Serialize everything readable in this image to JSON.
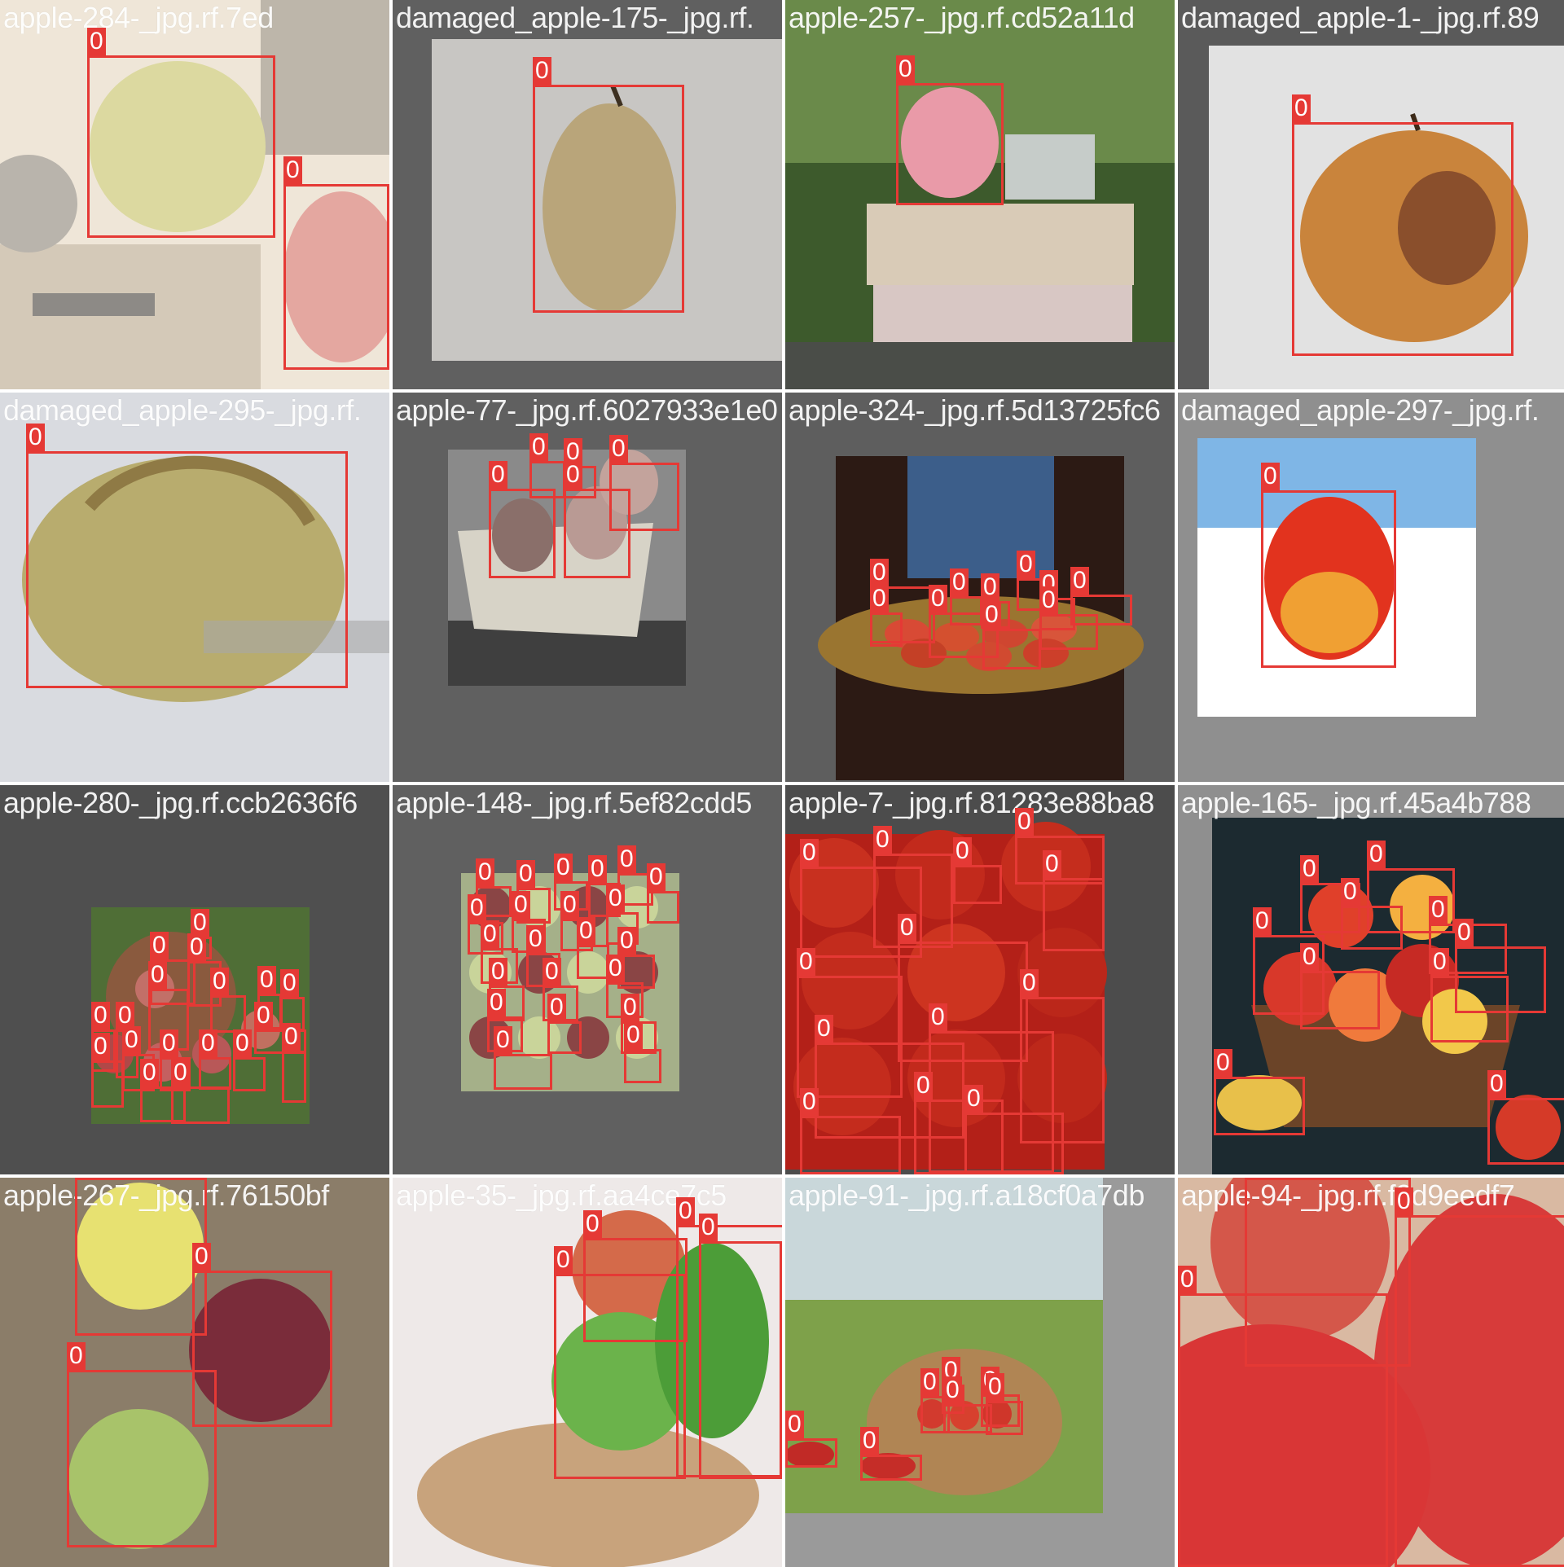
{
  "box_color": "#e53935",
  "tiles": [
    {
      "label": "apple-284-_jpg.rf.7ed",
      "class_id": "0"
    },
    {
      "label": "damaged_apple-175-_jpg.rf.",
      "class_id": "0"
    },
    {
      "label": "apple-257-_jpg.rf.cd52a11d",
      "class_id": "0"
    },
    {
      "label": "damaged_apple-1-_jpg.rf.89",
      "class_id": "0"
    },
    {
      "label": "damaged_apple-295-_jpg.rf.",
      "class_id": "0"
    },
    {
      "label": "apple-77-_jpg.rf.6027933e1e0",
      "class_id": "0"
    },
    {
      "label": "apple-324-_jpg.rf.5d13725fc6",
      "class_id": "0"
    },
    {
      "label": "damaged_apple-297-_jpg.rf.",
      "class_id": "0"
    },
    {
      "label": "apple-280-_jpg.rf.ccb2636f6",
      "class_id": "0"
    },
    {
      "label": "apple-148-_jpg.rf.5ef82cdd5",
      "class_id": "0"
    },
    {
      "label": "apple-7-_jpg.rf.81283e88ba8",
      "class_id": "0"
    },
    {
      "label": "apple-165-_jpg.rf.45a4b788",
      "class_id": "0"
    },
    {
      "label": "apple-267-_jpg.rf.76150bf",
      "class_id": "0"
    },
    {
      "label": "apple-35-_jpg.rf.aa4ce7c5",
      "class_id": "0"
    },
    {
      "label": "apple-91-_jpg.rf.a18cf0a7db",
      "class_id": "0"
    },
    {
      "label": "apple-94-_jpg.rf.f2d9eedf7",
      "class_id": "0"
    }
  ]
}
